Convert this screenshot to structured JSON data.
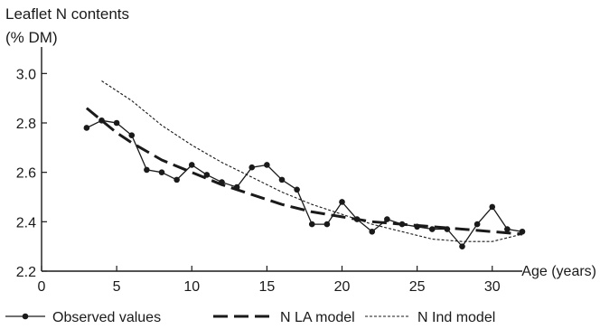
{
  "chart_data": {
    "type": "line",
    "ylabel_line1": "Leaflet N contents",
    "ylabel_line2": "(% DM)",
    "xlabel": "Age (years)",
    "xlim": [
      0,
      32
    ],
    "ylim": [
      2.2,
      3.1
    ],
    "xticks": [
      "0",
      "5",
      "10",
      "15",
      "20",
      "25",
      "30"
    ],
    "xtick_values": [
      0,
      5,
      10,
      15,
      20,
      25,
      30
    ],
    "yticks": [
      "2.2",
      "2.4",
      "2.6",
      "2.8",
      "3.0"
    ],
    "ytick_values": [
      2.2,
      2.4,
      2.6,
      2.8,
      3.0
    ],
    "grid": false,
    "legend_position": "bottom",
    "series": [
      {
        "name": "Observed values",
        "style": "solid-markers",
        "color": "#1a1a1a",
        "x": [
          3,
          4,
          5,
          6,
          7,
          8,
          9,
          10,
          11,
          12,
          13,
          14,
          15,
          16,
          17,
          18,
          19,
          20,
          21,
          22,
          23,
          24,
          25,
          26,
          27,
          28,
          29,
          30,
          31,
          32
        ],
        "y": [
          2.78,
          2.81,
          2.8,
          2.75,
          2.61,
          2.6,
          2.57,
          2.63,
          2.59,
          2.56,
          2.54,
          2.62,
          2.63,
          2.57,
          2.53,
          2.39,
          2.39,
          2.48,
          2.41,
          2.36,
          2.41,
          2.39,
          2.38,
          2.37,
          2.37,
          2.3,
          2.39,
          2.46,
          2.37,
          2.36
        ]
      },
      {
        "name": "N LA model",
        "style": "long-dash",
        "color": "#1a1a1a",
        "x": [
          3,
          4,
          5,
          6,
          8,
          10,
          12,
          14,
          16,
          18,
          20,
          22,
          24,
          26,
          28,
          30,
          32
        ],
        "y": [
          2.86,
          2.81,
          2.76,
          2.72,
          2.65,
          2.6,
          2.55,
          2.51,
          2.47,
          2.44,
          2.42,
          2.4,
          2.39,
          2.38,
          2.37,
          2.36,
          2.35
        ]
      },
      {
        "name": "N Ind model",
        "style": "fine-dash",
        "color": "#1a1a1a",
        "x": [
          4,
          6,
          8,
          10,
          12,
          14,
          16,
          18,
          20,
          22,
          24,
          26,
          28,
          30,
          32
        ],
        "y": [
          2.97,
          2.89,
          2.79,
          2.71,
          2.64,
          2.58,
          2.52,
          2.47,
          2.43,
          2.39,
          2.36,
          2.33,
          2.32,
          2.32,
          2.35
        ]
      }
    ]
  }
}
